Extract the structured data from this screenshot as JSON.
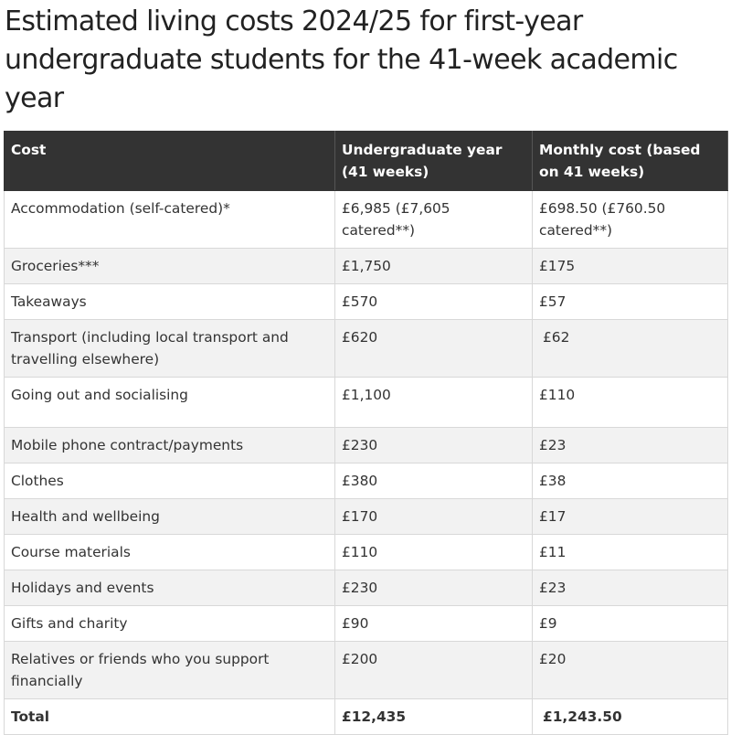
{
  "title": "Estimated living costs 2024/25 for first-year undergraduate students for the 41-week academic year",
  "table": {
    "headers": [
      "Cost",
      "Undergraduate year (41 weeks)",
      "Monthly cost (based on 41 weeks)"
    ],
    "rows": [
      [
        "Accommodation (self-catered)*",
        "£6,985 (£7,605 catered**)",
        "£698.50 (£760.50 catered**)"
      ],
      [
        "Groceries***",
        "£1,750",
        "£175"
      ],
      [
        "Takeaways",
        "£570",
        "£57"
      ],
      [
        "Transport (including local transport and travelling elsewhere)",
        "£620",
        "£62"
      ],
      [
        "Going out and socialising",
        "£1,100",
        "£110"
      ],
      [
        "Mobile phone contract/payments",
        "£230",
        "£23"
      ],
      [
        "Clothes",
        "£380",
        "£38"
      ],
      [
        "Health and wellbeing",
        "£170",
        "£17"
      ],
      [
        "Course materials",
        "£110",
        "£11"
      ],
      [
        "Holidays and events",
        "£230",
        "£23"
      ],
      [
        "Gifts and charity",
        "£90",
        "£9"
      ],
      [
        "Relatives or friends who you support financially",
        "£200",
        "£20"
      ]
    ],
    "total": [
      "Total",
      "£12,435",
      "£1,243.50"
    ]
  },
  "colors": {
    "header_bg": "#333333",
    "header_text": "#ffffff",
    "stripe": "#f2f2f2",
    "border": "#d8d8d8",
    "text": "#333333"
  }
}
